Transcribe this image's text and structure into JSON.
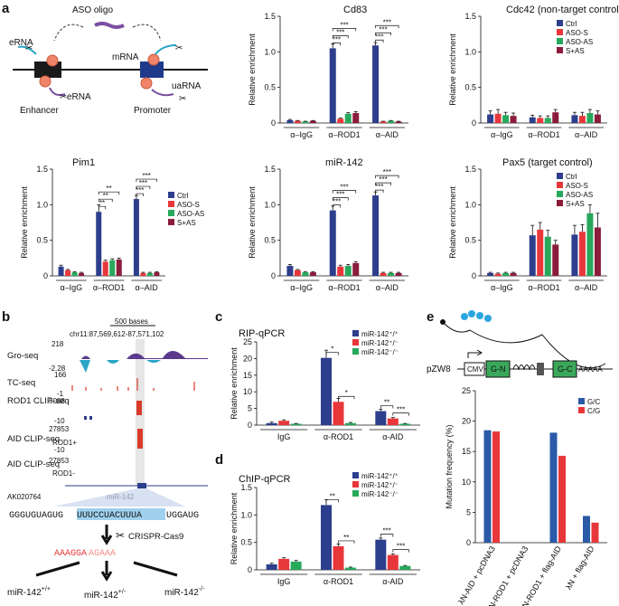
{
  "panel_labels": {
    "a": "a",
    "b": "b",
    "c": "c",
    "d": "d",
    "e": "e"
  },
  "schematic_a": {
    "aso_label": "ASO oligo",
    "erna_top": "eRNA",
    "erna_bottom": "eRNA",
    "mrna": "mRNA",
    "uarna": "uaRNA",
    "enhancer": "Enhancer",
    "promoter": "Promoter"
  },
  "colors": {
    "ctrl": "#2c3e8c",
    "aso_s": "#e8373a",
    "aso_as": "#27a85a",
    "s_as": "#8b1c3b",
    "wt": "#2c3e8c",
    "het": "#e8373a",
    "ko": "#27a85a",
    "gc": "#2b5aa7",
    "cg": "#e8373a"
  },
  "common": {
    "ylabel": "Relative enrichment",
    "ylabel_e": "Mutation frequency (%)",
    "groups_a": [
      "α–IgG",
      "α–ROD1",
      "α–AID"
    ],
    "legend_a": [
      "Ctrl",
      "ASO-S",
      "ASO-AS",
      "S+AS"
    ],
    "groups_cd": [
      "IgG",
      "α-ROD1",
      "α-AID"
    ],
    "legend_cd": [
      "miR-142⁺/⁺",
      "miR-142⁺/⁻",
      "miR-142⁻/⁻"
    ]
  },
  "chart_data": [
    {
      "id": "cd83",
      "type": "bar",
      "title": "Cd83",
      "ylabel": "Relative enrichment",
      "ylim": [
        0,
        1.5
      ],
      "yticks": [
        "0",
        "0.5",
        "1.0",
        "1.5"
      ],
      "categories": [
        "α–IgG",
        "α–ROD1",
        "α–AID"
      ],
      "series": [
        {
          "name": "Ctrl",
          "values": [
            0.04,
            1.05,
            1.09
          ],
          "err": [
            0.01,
            0.06,
            0.04
          ]
        },
        {
          "name": "ASO-S",
          "values": [
            0.03,
            0.06,
            0.02
          ],
          "err": [
            0.005,
            0.01,
            0.005
          ]
        },
        {
          "name": "ASO-AS",
          "values": [
            0.02,
            0.13,
            0.03
          ],
          "err": [
            0.005,
            0.015,
            0.005
          ]
        },
        {
          "name": "S+AS",
          "values": [
            0.03,
            0.14,
            0.02
          ],
          "err": [
            0.005,
            0.02,
            0.005
          ]
        }
      ],
      "sig": [
        "***",
        "***",
        "***",
        "***",
        "***",
        "***"
      ]
    },
    {
      "id": "cdc42",
      "type": "bar",
      "title": "Cdc42 (non-target control)",
      "ylabel": "Relative enrichment",
      "ylim": [
        0,
        1.5
      ],
      "yticks": [
        "0",
        "0.5",
        "1.0",
        "1.5"
      ],
      "categories": [
        "α–IgG",
        "α–ROD1",
        "α–AID"
      ],
      "legend": [
        "Ctrl",
        "ASO-S",
        "ASO-AS",
        "S+AS"
      ],
      "series": [
        {
          "name": "Ctrl",
          "values": [
            0.12,
            0.08,
            0.11
          ],
          "err": [
            0.05,
            0.03,
            0.04
          ]
        },
        {
          "name": "ASO-S",
          "values": [
            0.13,
            0.07,
            0.1
          ],
          "err": [
            0.06,
            0.03,
            0.05
          ]
        },
        {
          "name": "ASO-AS",
          "values": [
            0.11,
            0.07,
            0.14
          ],
          "err": [
            0.04,
            0.03,
            0.05
          ]
        },
        {
          "name": "S+AS",
          "values": [
            0.1,
            0.15,
            0.12
          ],
          "err": [
            0.04,
            0.04,
            0.05
          ]
        }
      ]
    },
    {
      "id": "pim1",
      "type": "bar",
      "title": "Pim1",
      "ylabel": "Relative enrichment",
      "ylim": [
        0,
        1.5
      ],
      "yticks": [
        "0",
        "0.5",
        "1.0",
        "1.5"
      ],
      "categories": [
        "α–IgG",
        "α–ROD1",
        "α–AID"
      ],
      "legend": [
        "Ctrl",
        "ASO-S",
        "ASO-AS",
        "S+AS"
      ],
      "series": [
        {
          "name": "Ctrl",
          "values": [
            0.13,
            0.9,
            1.08
          ],
          "err": [
            0.02,
            0.1,
            0.05
          ]
        },
        {
          "name": "ASO-S",
          "values": [
            0.08,
            0.2,
            0.04
          ],
          "err": [
            0.01,
            0.02,
            0.01
          ]
        },
        {
          "name": "ASO-AS",
          "values": [
            0.05,
            0.22,
            0.04
          ],
          "err": [
            0.01,
            0.02,
            0.01
          ]
        },
        {
          "name": "S+AS",
          "values": [
            0.04,
            0.23,
            0.05
          ],
          "err": [
            0.01,
            0.02,
            0.01
          ]
        }
      ],
      "sig": [
        "**",
        "**",
        "**",
        "***",
        "***",
        "***"
      ]
    },
    {
      "id": "mir142",
      "type": "bar",
      "title": "miR-142",
      "ylabel": "Relative enrichment",
      "ylim": [
        0,
        1.5
      ],
      "yticks": [
        "0",
        "0.5",
        "1.0",
        "1.5"
      ],
      "categories": [
        "α–IgG",
        "α–ROD1",
        "α–AID"
      ],
      "series": [
        {
          "name": "Ctrl",
          "values": [
            0.14,
            0.92,
            1.13
          ],
          "err": [
            0.02,
            0.06,
            0.05
          ]
        },
        {
          "name": "ASO-S",
          "values": [
            0.08,
            0.13,
            0.04
          ],
          "err": [
            0.01,
            0.02,
            0.01
          ]
        },
        {
          "name": "ASO-AS",
          "values": [
            0.05,
            0.14,
            0.04
          ],
          "err": [
            0.01,
            0.02,
            0.01
          ]
        },
        {
          "name": "S+AS",
          "values": [
            0.05,
            0.18,
            0.04
          ],
          "err": [
            0.01,
            0.02,
            0.01
          ]
        }
      ],
      "sig": [
        "***",
        "***",
        "***",
        "***",
        "***",
        "***"
      ]
    },
    {
      "id": "pax5",
      "type": "bar",
      "title": "Pax5 (target control)",
      "ylabel": "Relative enrichment",
      "ylim": [
        0,
        1.5
      ],
      "yticks": [
        "0",
        "0.5",
        "1.0",
        "1.5"
      ],
      "categories": [
        "α–IgG",
        "α–ROD1",
        "α–AID"
      ],
      "legend": [
        "Ctrl",
        "ASO-S",
        "ASO-AS",
        "S+AS"
      ],
      "series": [
        {
          "name": "Ctrl",
          "values": [
            0.04,
            0.57,
            0.58
          ],
          "err": [
            0.01,
            0.14,
            0.13
          ]
        },
        {
          "name": "ASO-S",
          "values": [
            0.03,
            0.65,
            0.62
          ],
          "err": [
            0.01,
            0.1,
            0.1
          ]
        },
        {
          "name": "ASO-AS",
          "values": [
            0.04,
            0.55,
            0.88
          ],
          "err": [
            0.01,
            0.09,
            0.12
          ]
        },
        {
          "name": "S+AS",
          "values": [
            0.04,
            0.44,
            0.68
          ],
          "err": [
            0.01,
            0.06,
            0.2
          ]
        }
      ]
    },
    {
      "id": "rip",
      "type": "bar",
      "title": "RIP-qPCR",
      "ylabel": "Relative enrichment",
      "ylim": [
        0,
        25
      ],
      "yticks": [
        "0",
        "5",
        "10",
        "15",
        "20",
        "25"
      ],
      "categories": [
        "IgG",
        "α-ROD1",
        "α-AID"
      ],
      "legend": [
        "miR-142⁺/⁺",
        "miR-142⁺/⁻",
        "miR-142⁻/⁻"
      ],
      "series": [
        {
          "name": "miR-142+/+",
          "values": [
            0.6,
            20.2,
            4.2
          ],
          "err": [
            0.3,
            2.3,
            0.6
          ]
        },
        {
          "name": "miR-142+/-",
          "values": [
            1.3,
            7.0,
            2.0
          ],
          "err": [
            0.3,
            1.0,
            0.3
          ]
        },
        {
          "name": "miR-142-/-",
          "values": [
            0.4,
            0.6,
            0.4
          ],
          "err": [
            0.1,
            0.2,
            0.1
          ]
        }
      ],
      "sig": [
        "*",
        "*",
        "**",
        "***"
      ]
    },
    {
      "id": "chip",
      "type": "bar",
      "title": "ChIP-qPCR",
      "ylabel": "Relative enrichment",
      "ylim": [
        0,
        1.5
      ],
      "yticks": [
        "0",
        "0.5",
        "1.0",
        "1.5"
      ],
      "categories": [
        "IgG",
        "α-ROD1",
        "α-AID"
      ],
      "legend": [
        "miR-142⁺/⁺",
        "miR-142⁺/⁻",
        "miR-142⁻/⁻"
      ],
      "series": [
        {
          "name": "miR-142+/+",
          "values": [
            0.1,
            1.18,
            0.55
          ],
          "err": [
            0.02,
            0.1,
            0.03
          ]
        },
        {
          "name": "miR-142+/-",
          "values": [
            0.2,
            0.43,
            0.27
          ],
          "err": [
            0.02,
            0.04,
            0.02
          ]
        },
        {
          "name": "miR-142-/-",
          "values": [
            0.15,
            0.04,
            0.07
          ],
          "err": [
            0.02,
            0.01,
            0.01
          ]
        }
      ],
      "sig": [
        "**",
        "**",
        "***",
        "***"
      ]
    },
    {
      "id": "mutfreq",
      "type": "bar",
      "title": "",
      "ylabel": "Mutation frequency (%)",
      "ylim": [
        0,
        25
      ],
      "yticks": [
        "0",
        "5",
        "10",
        "15",
        "20",
        "25"
      ],
      "categories": [
        "λN-AID + pcDNA3",
        "λN-ROD1 + pcDNA3",
        "λN-ROD1 + flag-AID",
        "λN + flag-AID"
      ],
      "legend": [
        "G/C",
        "C/G"
      ],
      "series": [
        {
          "name": "G/C",
          "values": [
            18.5,
            0,
            18.1,
            4.4
          ]
        },
        {
          "name": "C/G",
          "values": [
            18.3,
            0,
            14.3,
            3.3
          ]
        }
      ]
    }
  ],
  "panel_b": {
    "scale": "500 bases",
    "coords": "chr11:87,569,612-87,571,102",
    "tracks": [
      {
        "label": "Gro-seq",
        "max": "218",
        "min": "-2.28"
      },
      {
        "label": "TC-seq",
        "max": "166",
        "min": "-1"
      },
      {
        "label": "ROD1 CLIP-seq",
        "max": "5088",
        "min": "-10"
      },
      {
        "label": "AID CLIP-seq",
        "max": "27853",
        "min": "-10",
        "sub": "ROD1+"
      },
      {
        "label": "AID CLIP-seq",
        "max": "27853",
        "min": "-10",
        "sub": "ROD1-"
      }
    ],
    "gene_left": "AK020764",
    "gene_right": "miR-142",
    "sequence_pre": "GGGUGUAGUG",
    "sequence_hl": "UUUCCUACUUUA",
    "sequence_post": "UGGAUG",
    "crispr": "CRISPR-Cas9",
    "edit_red": "AAAGGA",
    "edit_pink": "AGAAA",
    "genotype_wt": "miR-142",
    "genotype_wt_sup": "+/+",
    "genotype_het": "miR-142",
    "genotype_het_sup": "+/-",
    "genotype_ko": "miR-142",
    "genotype_ko_sup": "-/-"
  },
  "panel_e_schematic": {
    "plasmid": "pZW8",
    "cmv": "CMV",
    "gn": "G-N",
    "gc": "G-C",
    "polya": "AAAAA"
  }
}
